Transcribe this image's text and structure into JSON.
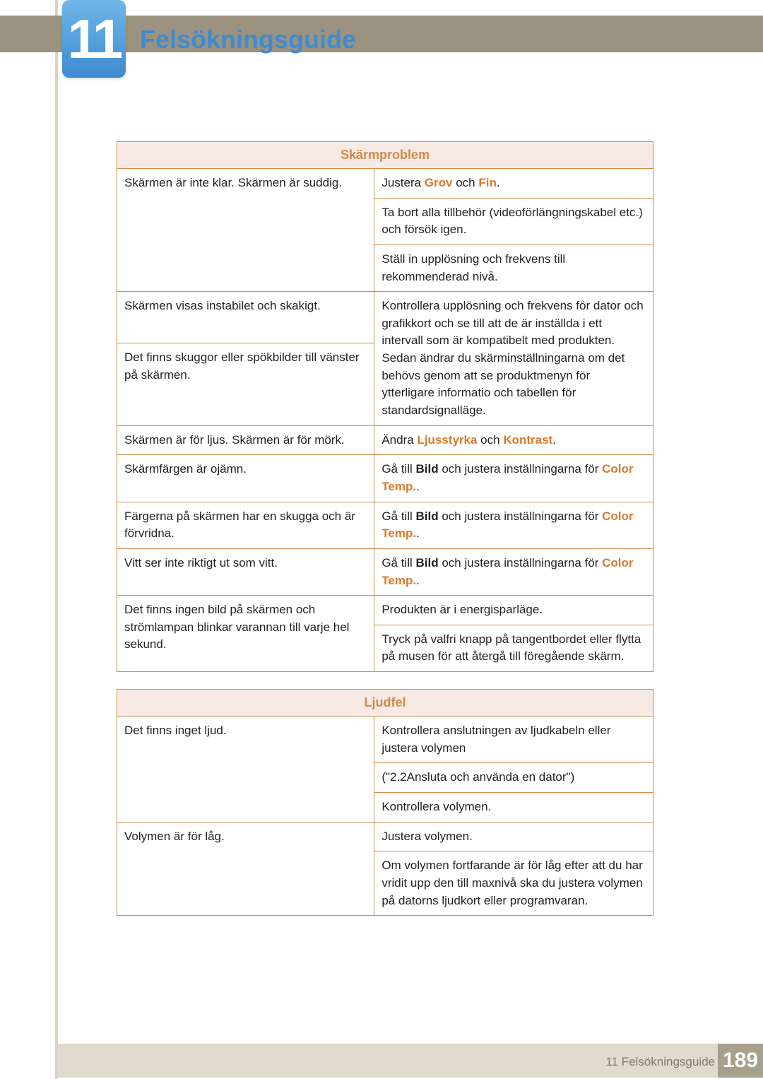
{
  "colors": {
    "top_bar": "#9b9380",
    "title": "#3f8bd0",
    "badge_grad_top": "#6fb6e8",
    "badge_grad_bot": "#3f8bd0",
    "table_border": "#d08b4a",
    "table_header_bg": "#f7e9e4",
    "table_header_text": "#d08b4a",
    "highlight": "#d97a2b",
    "body_text": "#222222",
    "sidebar": "#d9d3c4",
    "footer_bg": "#e0dbce",
    "footer_text": "#807a6a",
    "pagenum_bg": "#a7a08c"
  },
  "chapter_number": "11",
  "page_title": "Felsökningsguide",
  "footer": {
    "text": "11 Felsökningsguide",
    "page": "189"
  },
  "table1": {
    "header": "Skärmproblem",
    "rows": [
      {
        "left": "Skärmen är inte klar. Skärmen är suddig.",
        "left_rowspan": 3,
        "right_cells": [
          {
            "segments": [
              {
                "t": "Justera "
              },
              {
                "t": "Grov",
                "style": "hl"
              },
              {
                "t": " och "
              },
              {
                "t": "Fin",
                "style": "hl"
              },
              {
                "t": "."
              }
            ]
          },
          {
            "segments": [
              {
                "t": "Ta bort alla tillbehör (videoförlängningskabel etc.) och försök igen."
              }
            ]
          },
          {
            "segments": [
              {
                "t": "Ställ in upplösning och frekvens till rekommenderad nivå."
              }
            ]
          }
        ]
      },
      {
        "left": "Skärmen visas instabilet och skakigt.",
        "right_cells": [
          {
            "rowspan": 2,
            "segments": [
              {
                "t": "Kontrollera upplösning och frekvens för dator och grafikkort och se till att de är inställda i ett intervall som är kompatibelt med produkten. Sedan ändrar du skärminställningarna om det behövs genom att se produktmenyn för ytterligare informatio och tabellen för standardsignalläge."
              }
            ]
          }
        ]
      },
      {
        "left": "Det finns skuggor eller spökbilder till vänster på skärmen.",
        "right_merged_above": true
      },
      {
        "left": "Skärmen är för ljus. Skärmen är för mörk.",
        "right_cells": [
          {
            "segments": [
              {
                "t": "Ändra "
              },
              {
                "t": "Ljusstyrka",
                "style": "hl"
              },
              {
                "t": " och "
              },
              {
                "t": "Kontrast",
                "style": "hl"
              },
              {
                "t": "."
              }
            ]
          }
        ]
      },
      {
        "left": "Skärmfärgen är ojämn.",
        "right_cells": [
          {
            "segments": [
              {
                "t": "Gå till "
              },
              {
                "t": "Bild",
                "style": "b"
              },
              {
                "t": " och justera inställningarna för "
              },
              {
                "t": "Color Temp.",
                "style": "hl"
              },
              {
                "t": "."
              }
            ]
          }
        ]
      },
      {
        "left": "Färgerna på skärmen har en skugga och är förvridna.",
        "right_cells": [
          {
            "segments": [
              {
                "t": "Gå till "
              },
              {
                "t": "Bild",
                "style": "b"
              },
              {
                "t": " och justera inställningarna för "
              },
              {
                "t": "Color Temp.",
                "style": "hl"
              },
              {
                "t": "."
              }
            ]
          }
        ]
      },
      {
        "left": "Vitt ser inte riktigt ut som vitt.",
        "right_cells": [
          {
            "segments": [
              {
                "t": "Gå till "
              },
              {
                "t": "Bild",
                "style": "b"
              },
              {
                "t": " och justera inställningarna för "
              },
              {
                "t": "Color Temp.",
                "style": "hl"
              },
              {
                "t": "."
              }
            ]
          }
        ]
      },
      {
        "left": "Det finns ingen bild på skärmen och strömlampan blinkar varannan till varje hel sekund.",
        "left_rowspan": 2,
        "right_cells": [
          {
            "segments": [
              {
                "t": "Produkten är i energisparläge."
              }
            ]
          },
          {
            "segments": [
              {
                "t": "Tryck på valfri knapp på tangentbordet eller flytta på musen för att återgå till föregående skärm."
              }
            ]
          }
        ]
      }
    ]
  },
  "table2": {
    "header": "Ljudfel",
    "rows": [
      {
        "left": "Det finns inget ljud.",
        "left_rowspan": 3,
        "right_cells": [
          {
            "segments": [
              {
                "t": "Kontrollera anslutningen av ljudkabeln eller justera volymen"
              }
            ]
          },
          {
            "segments": [
              {
                "t": "(\"2.2Ansluta och använda en dator\")"
              }
            ]
          },
          {
            "segments": [
              {
                "t": "Kontrollera volymen."
              }
            ]
          }
        ]
      },
      {
        "left": "Volymen är för låg.",
        "left_rowspan": 2,
        "right_cells": [
          {
            "segments": [
              {
                "t": "Justera volymen."
              }
            ]
          },
          {
            "segments": [
              {
                "t": "Om volymen fortfarande är för låg efter att du har vridit upp den till maxnivå ska du justera volymen på datorns ljudkort eller programvaran."
              }
            ]
          }
        ]
      }
    ]
  }
}
